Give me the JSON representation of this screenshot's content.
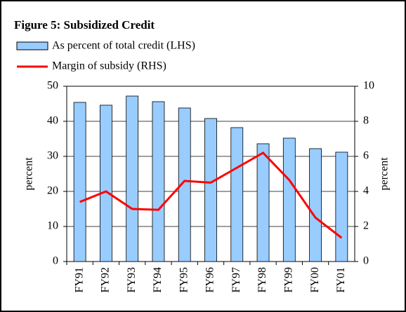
{
  "chart_data": {
    "type": "bar_line",
    "title": "Figure 5: Subsidized Credit",
    "categories": [
      "FY91",
      "FY92",
      "FY93",
      "FY94",
      "FY95",
      "FY96",
      "FY97",
      "FY98",
      "FY99",
      "FY00",
      "FY01"
    ],
    "series": [
      {
        "name": "As percent of total credit (LHS)",
        "type": "bar",
        "color": "#99ccff",
        "axis": "y",
        "values": [
          45.4,
          44.6,
          47.2,
          45.6,
          43.8,
          40.8,
          38.2,
          33.6,
          35.2,
          32.2,
          31.2
        ]
      },
      {
        "name": "Margin of subsidy (RHS)",
        "type": "line",
        "color": "#ff0000",
        "axis": "y2",
        "values": [
          3.4,
          4.0,
          3.0,
          2.95,
          4.6,
          4.5,
          5.35,
          6.2,
          4.65,
          2.5,
          1.35
        ]
      }
    ],
    "ylabel": "percent",
    "y2label": "percent",
    "ylim": [
      0,
      50
    ],
    "yticks": [
      0,
      10,
      20,
      30,
      40,
      50
    ],
    "y2lim": [
      0,
      10
    ],
    "y2ticks": [
      0,
      2,
      4,
      6,
      8,
      10
    ],
    "grid": true
  }
}
